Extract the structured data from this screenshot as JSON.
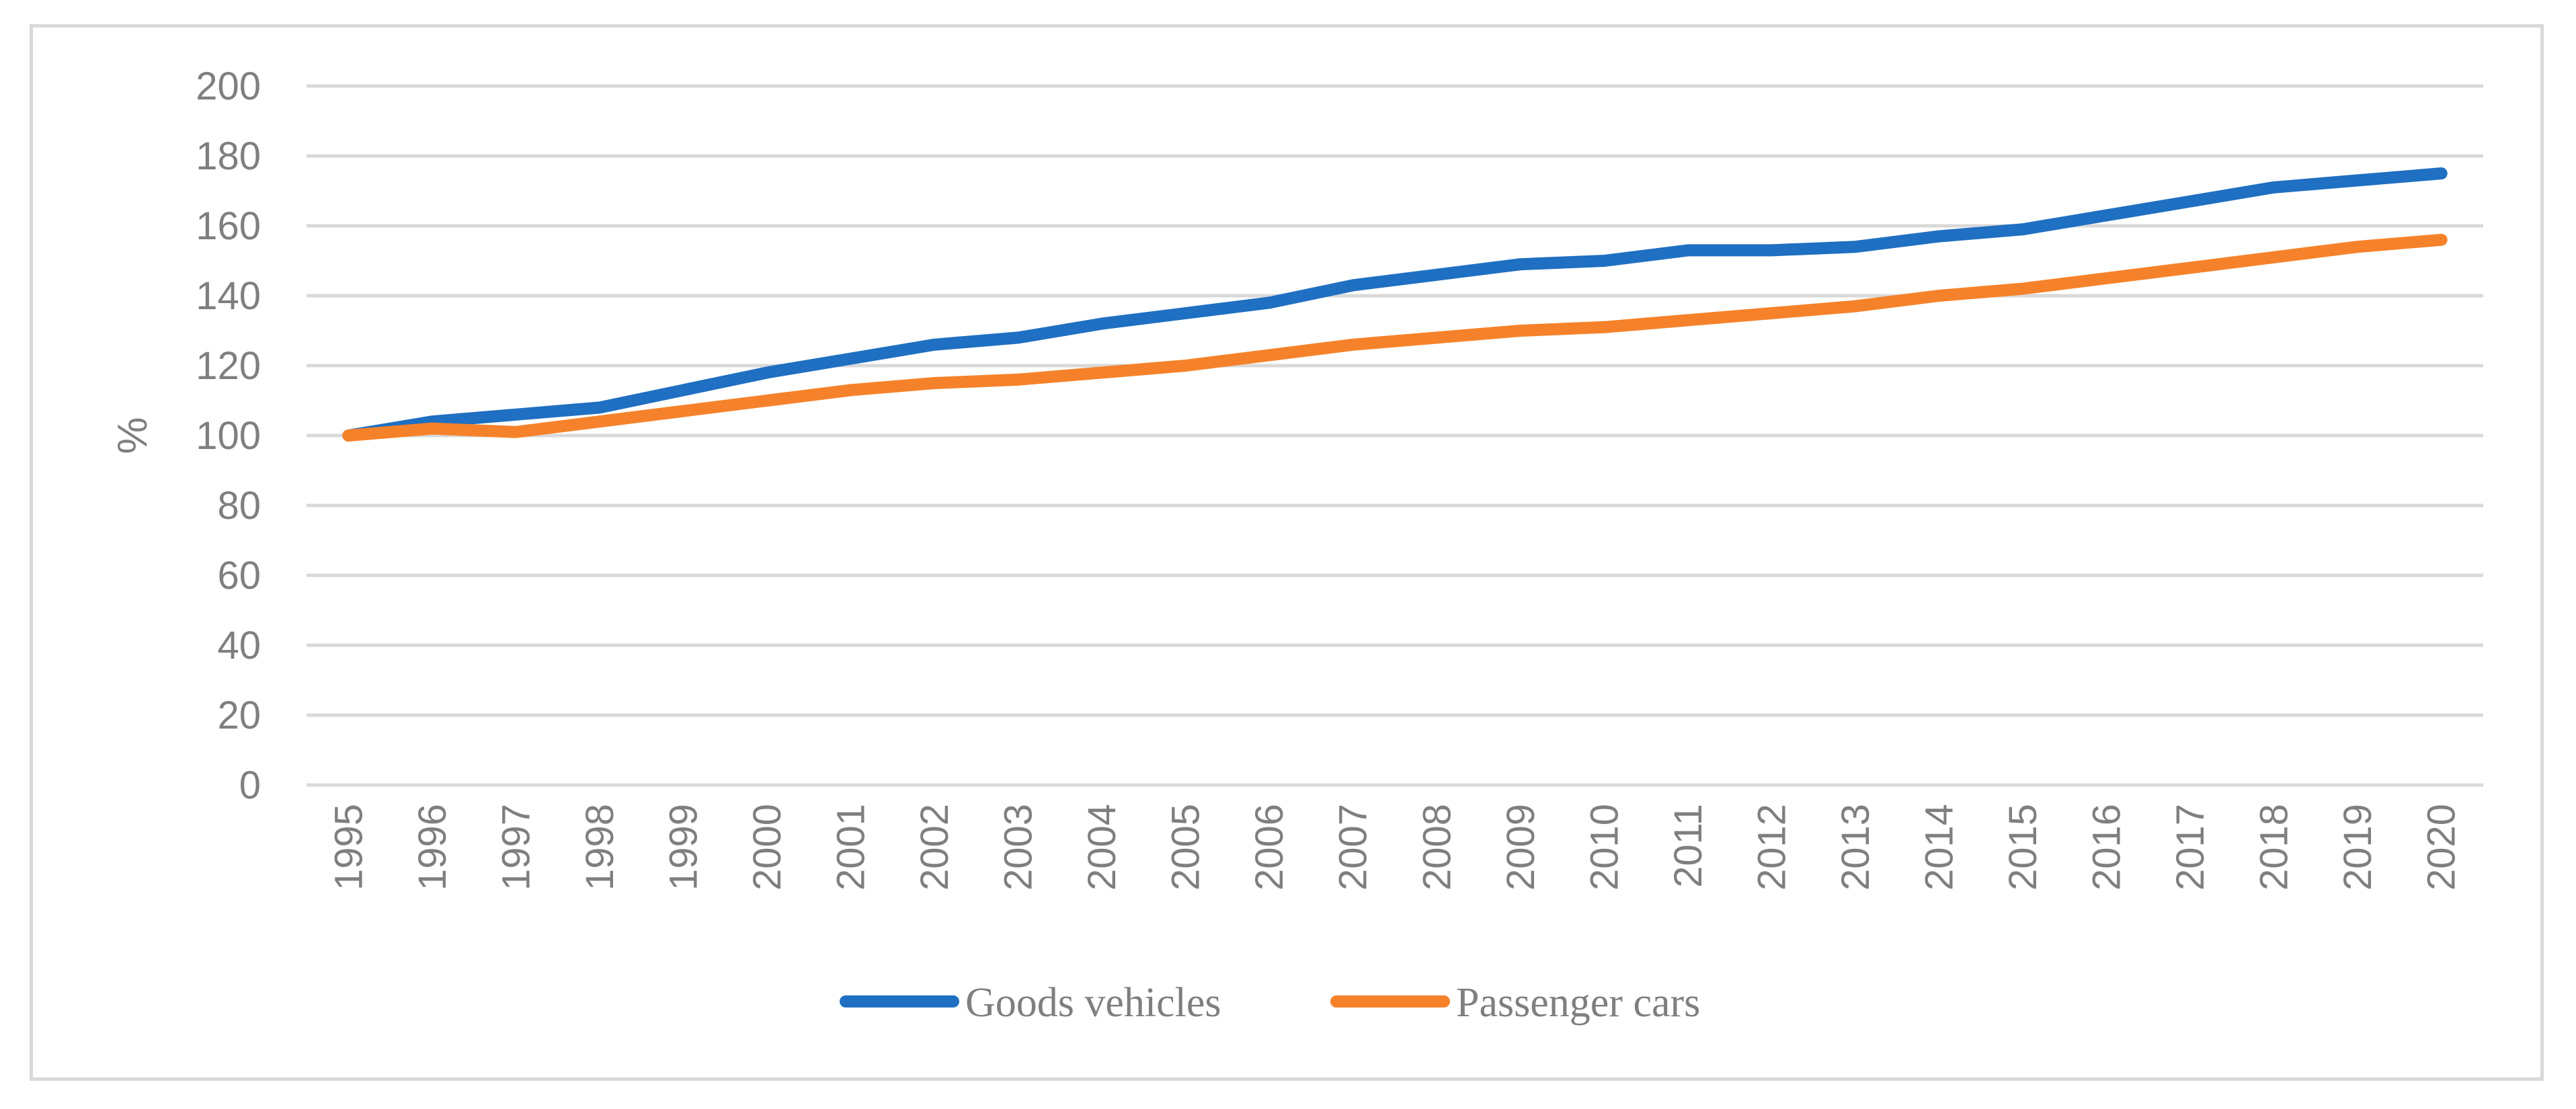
{
  "chart_data": {
    "type": "line",
    "title": "",
    "xlabel": "",
    "ylabel": "%",
    "ylim": [
      0,
      200
    ],
    "yticks": [
      0,
      20,
      40,
      60,
      80,
      100,
      120,
      140,
      160,
      180,
      200
    ],
    "grid": true,
    "legend_position": "bottom",
    "categories": [
      "1995",
      "1996",
      "1997",
      "1998",
      "1999",
      "2000",
      "2001",
      "2002",
      "2003",
      "2004",
      "2005",
      "2006",
      "2007",
      "2008",
      "2009",
      "2010",
      "2011",
      "2012",
      "2013",
      "2014",
      "2015",
      "2016",
      "2017",
      "2018",
      "2019",
      "2020"
    ],
    "series": [
      {
        "name": "Goods vehicles",
        "color": "#1f6fc2",
        "values": [
          100,
          104,
          106,
          108,
          113,
          118,
          122,
          126,
          128,
          132,
          135,
          138,
          143,
          146,
          149,
          150,
          153,
          153,
          154,
          157,
          159,
          163,
          167,
          171,
          173,
          175
        ]
      },
      {
        "name": "Passenger cars",
        "color": "#f5822a",
        "values": [
          100,
          102,
          101,
          104,
          107,
          110,
          113,
          115,
          116,
          118,
          120,
          123,
          126,
          128,
          130,
          131,
          133,
          135,
          137,
          140,
          142,
          145,
          148,
          151,
          154,
          156
        ]
      }
    ]
  }
}
